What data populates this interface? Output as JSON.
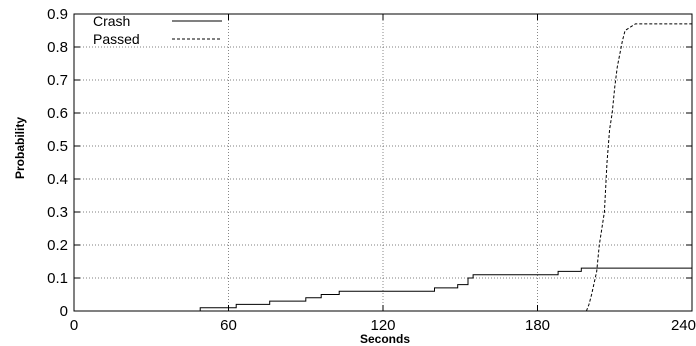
{
  "chart_data": {
    "type": "line",
    "title": "",
    "xlabel": "Seconds",
    "ylabel": "Probability",
    "xlim": [
      0,
      240
    ],
    "ylim": [
      0,
      0.9
    ],
    "x_ticks": [
      0,
      60,
      120,
      180,
      240
    ],
    "x_tick_labels": [
      "0",
      "60",
      "120",
      "180",
      "240"
    ],
    "y_ticks": [
      0,
      0.1,
      0.2,
      0.3,
      0.4,
      0.5,
      0.6,
      0.7,
      0.8,
      0.9
    ],
    "y_tick_labels": [
      "0",
      "0.1",
      "0.2",
      "0.3",
      "0.4",
      "0.5",
      "0.6",
      "0.7",
      "0.8",
      "0.9"
    ],
    "grid": true,
    "legend_position": "top-left",
    "series": [
      {
        "name": "Crash",
        "style": "solid",
        "color": "#000000",
        "step": true,
        "points": [
          [
            49,
            0
          ],
          [
            49,
            0.01
          ],
          [
            63,
            0.01
          ],
          [
            63,
            0.02
          ],
          [
            76,
            0.02
          ],
          [
            76,
            0.03
          ],
          [
            90,
            0.03
          ],
          [
            90,
            0.04
          ],
          [
            96,
            0.04
          ],
          [
            96,
            0.05
          ],
          [
            103,
            0.05
          ],
          [
            103,
            0.06
          ],
          [
            113,
            0.06
          ],
          [
            113,
            0.06
          ],
          [
            127,
            0.06
          ],
          [
            127,
            0.06
          ],
          [
            140,
            0.06
          ],
          [
            140,
            0.07
          ],
          [
            149,
            0.07
          ],
          [
            149,
            0.08
          ],
          [
            153,
            0.08
          ],
          [
            153,
            0.1
          ],
          [
            155,
            0.1
          ],
          [
            155,
            0.11
          ],
          [
            160,
            0.11
          ],
          [
            160,
            0.11
          ],
          [
            188,
            0.11
          ],
          [
            188,
            0.12
          ],
          [
            197,
            0.12
          ],
          [
            197,
            0.13
          ],
          [
            240,
            0.13
          ]
        ]
      },
      {
        "name": "Passed",
        "style": "dashed",
        "color": "#000000",
        "step": false,
        "points": [
          [
            199,
            0
          ],
          [
            200,
            0.02
          ],
          [
            201,
            0.05
          ],
          [
            203,
            0.12
          ],
          [
            204,
            0.2
          ],
          [
            206,
            0.3
          ],
          [
            207,
            0.45
          ],
          [
            208,
            0.55
          ],
          [
            209,
            0.6
          ],
          [
            210,
            0.68
          ],
          [
            211,
            0.74
          ],
          [
            212,
            0.78
          ],
          [
            213,
            0.82
          ],
          [
            214,
            0.85
          ],
          [
            216,
            0.86
          ],
          [
            218,
            0.87
          ],
          [
            240,
            0.87
          ]
        ]
      }
    ]
  }
}
